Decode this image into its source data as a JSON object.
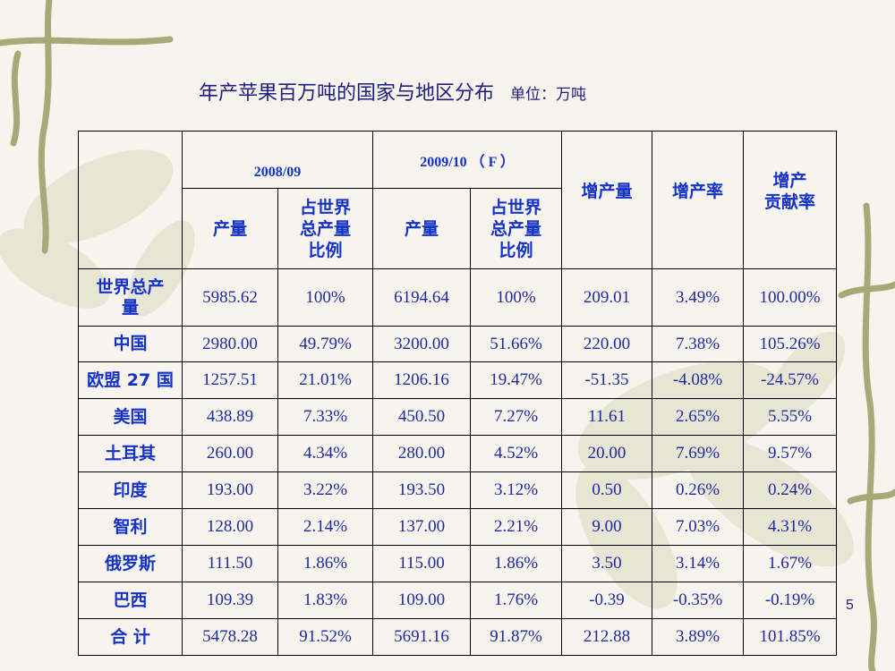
{
  "title": "年产苹果百万吨的国家与地区分布",
  "unit": "单位：万吨",
  "page_number": "5",
  "table": {
    "period_1": "2008/09",
    "period_2": "2009/10 （ F ）",
    "col_output": "产量",
    "col_share_lines": [
      "占世界",
      "总产量",
      "比例"
    ],
    "col_increase": "增产量",
    "col_increase_rate": "增产率",
    "col_contribution_lines": [
      "增产",
      "贡献率"
    ],
    "rows": [
      {
        "name_lines": [
          "世界总产",
          "量"
        ],
        "values": [
          "5985.62",
          "100%",
          "6194.64",
          "100%",
          "209.01",
          "3.49%",
          "100.00%"
        ]
      },
      {
        "name_lines": [
          "中国"
        ],
        "values": [
          "2980.00",
          "49.79%",
          "3200.00",
          "51.66%",
          "220.00",
          "7.38%",
          "105.26%"
        ]
      },
      {
        "name_lines": [
          "欧盟 27 国"
        ],
        "values": [
          "1257.51",
          "21.01%",
          "1206.16",
          "19.47%",
          "-51.35",
          "-4.08%",
          "-24.57%"
        ]
      },
      {
        "name_lines": [
          "美国"
        ],
        "values": [
          "438.89",
          "7.33%",
          "450.50",
          "7.27%",
          "11.61",
          "2.65%",
          "5.55%"
        ]
      },
      {
        "name_lines": [
          "土耳其"
        ],
        "values": [
          "260.00",
          "4.34%",
          "280.00",
          "4.52%",
          "20.00",
          "7.69%",
          "9.57%"
        ]
      },
      {
        "name_lines": [
          "印度"
        ],
        "values": [
          "193.00",
          "3.22%",
          "193.50",
          "3.12%",
          "0.50",
          "0.26%",
          "0.24%"
        ]
      },
      {
        "name_lines": [
          "智利"
        ],
        "values": [
          "128.00",
          "2.14%",
          "137.00",
          "2.21%",
          "9.00",
          "7.03%",
          "4.31%"
        ]
      },
      {
        "name_lines": [
          "俄罗斯"
        ],
        "values": [
          "111.50",
          "1.86%",
          "115.00",
          "1.86%",
          "3.50",
          "3.14%",
          "1.67%"
        ]
      },
      {
        "name_lines": [
          "巴西"
        ],
        "values": [
          "109.39",
          "1.83%",
          "109.00",
          "1.76%",
          "-0.39",
          "-0.35%",
          "-0.19%"
        ]
      },
      {
        "name_lines": [
          "合 计"
        ],
        "values": [
          "5478.28",
          "91.52%",
          "5691.16",
          "91.87%",
          "212.88",
          "3.89%",
          "101.85%"
        ]
      }
    ]
  }
}
